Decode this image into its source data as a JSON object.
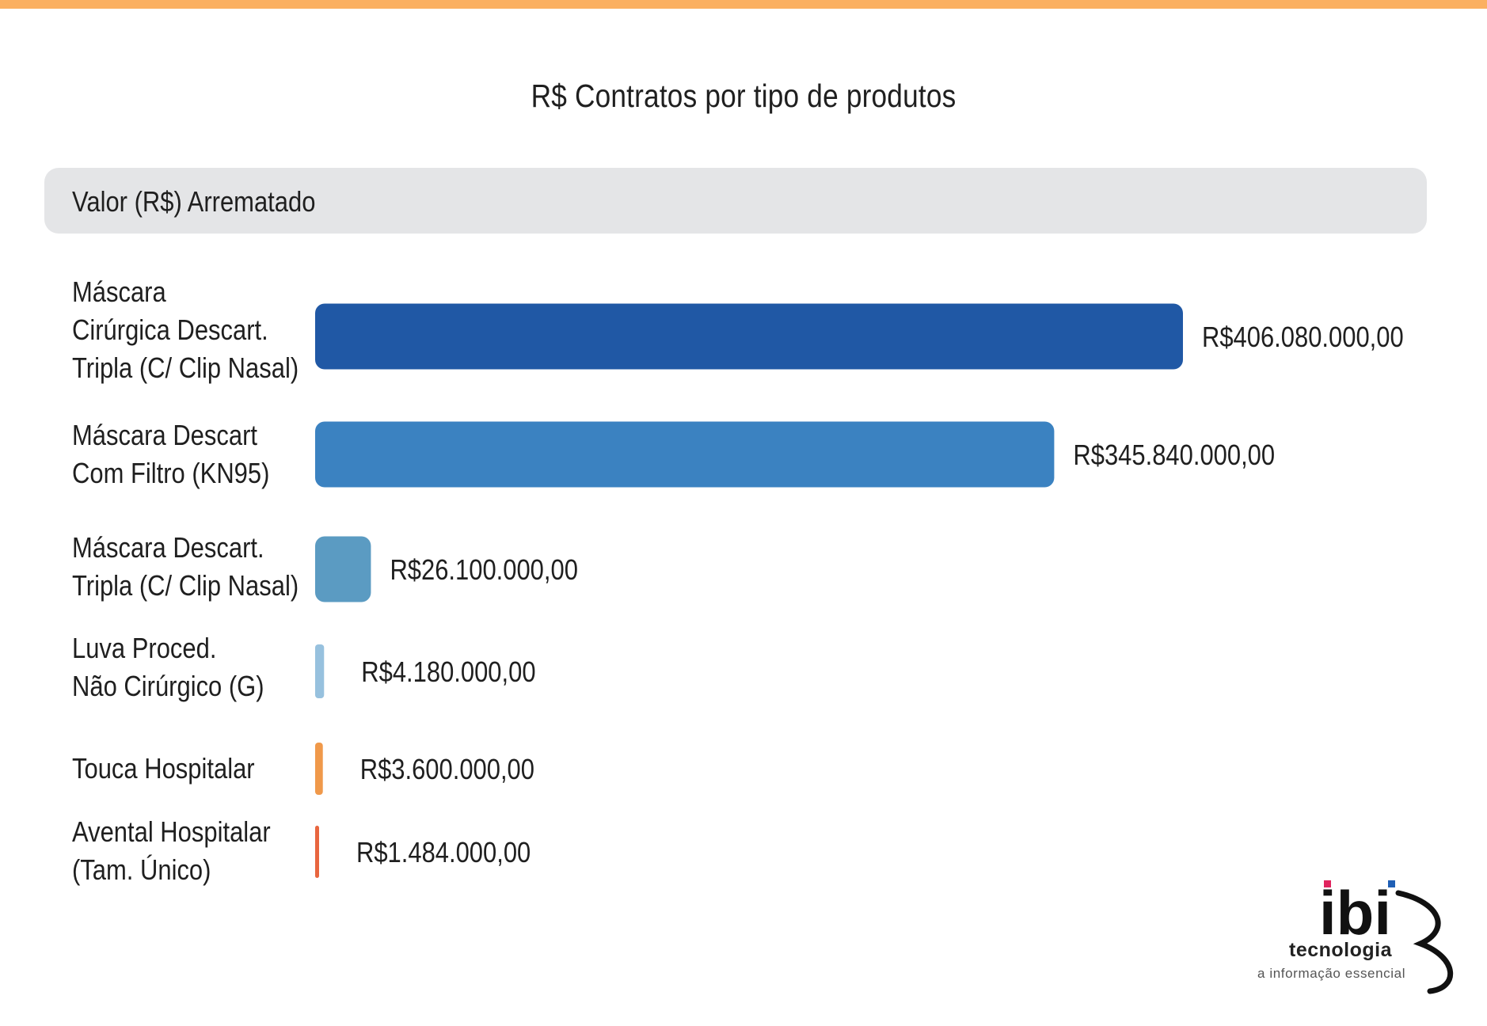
{
  "colors": {
    "top_bar": "#fbb061",
    "header_band": "#e4e5e7",
    "text": "#1f1f1f"
  },
  "header": {
    "label": "Valor (R$) Arrematado"
  },
  "chart_data": {
    "type": "bar",
    "orientation": "horizontal",
    "title": "R$ Contratos por tipo de produtos",
    "xlabel": "",
    "ylabel": "",
    "grid": false,
    "categories": [
      [
        "Máscara",
        "Cirúrgica Descart.",
        "Tripla (C/ Clip Nasal)"
      ],
      [
        "Máscara Descart",
        "Com Filtro (KN95)"
      ],
      [
        "Máscara Descart.",
        "Tripla (C/ Clip Nasal)"
      ],
      [
        "Luva Proced.",
        "Não Cirúrgico (G)"
      ],
      [
        "Touca Hospitalar"
      ],
      [
        "Avental Hospitalar",
        "(Tam. Único)"
      ]
    ],
    "values": [
      406080000,
      345840000,
      26100000,
      4180000,
      3600000,
      1484000
    ],
    "value_labels": [
      "R$406.080.000,00",
      "R$345.840.000,00",
      "R$26.100.000,00",
      "R$4.180.000,00",
      "R$3.600.000,00",
      "R$1.484.000,00"
    ],
    "bar_colors": [
      "#2058a5",
      "#3b82c1",
      "#5b9bc2",
      "#97c1de",
      "#f0994a",
      "#e8663f"
    ],
    "xlim": [
      0,
      406080000
    ]
  },
  "logo": {
    "name": "ibi-logo",
    "wordmark": "ibi",
    "word": "tecnologia",
    "tagline": "a informação essencial",
    "dot_colors": [
      "#e0245e",
      "#1f5fb5"
    ]
  }
}
